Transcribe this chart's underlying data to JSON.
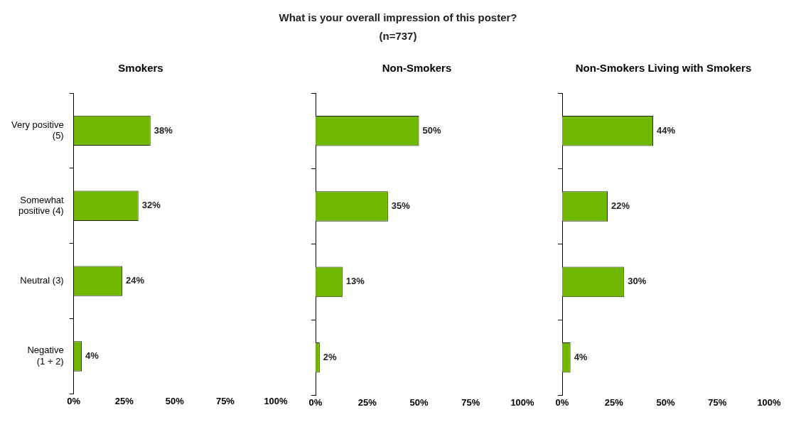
{
  "chart_data": [
    {
      "type": "other",
      "title": "What is your overall impression of this poster?",
      "subtitle": "(n=737)"
    },
    {
      "type": "bar",
      "orientation": "horizontal",
      "title": "Smokers",
      "categories": [
        "Very positive\n(5)",
        "Somewhat\npositive (4)",
        "Neutral (3)",
        "Negative\n(1 + 2)"
      ],
      "values": [
        38,
        32,
        24,
        4
      ],
      "value_labels": [
        "38%",
        "32%",
        "24%",
        "4%"
      ],
      "color": "#70b800",
      "xlim": [
        0,
        100
      ],
      "xticks": [
        {
          "value": 0,
          "label": "0%"
        },
        {
          "value": 25,
          "label": "25%"
        },
        {
          "value": 50,
          "label": "50%"
        },
        {
          "value": 75,
          "label": "75%"
        },
        {
          "value": 100,
          "label": "100%"
        }
      ],
      "grid": false,
      "legend": false
    },
    {
      "type": "bar",
      "orientation": "horizontal",
      "title": "Non-Smokers",
      "categories": [
        null,
        null,
        null,
        null
      ],
      "values": [
        50,
        35,
        13,
        2
      ],
      "value_labels": [
        "50%",
        "35%",
        "13%",
        "2%"
      ],
      "color": "#70b800",
      "xlim": [
        0,
        100
      ],
      "xticks": [
        {
          "value": 0,
          "label": "0%"
        },
        {
          "value": 25,
          "label": "25%"
        },
        {
          "value": 50,
          "label": "50%"
        },
        {
          "value": 75,
          "label": "75%"
        },
        {
          "value": 100,
          "label": "100%"
        }
      ],
      "grid": false,
      "legend": false,
      "tick_labels": "x"
    },
    {
      "type": "bar",
      "orientation": "horizontal",
      "title": "Non-Smokers Living with Smokers",
      "categories": [
        null,
        null,
        null,
        null
      ],
      "values": [
        44,
        22,
        30,
        4
      ],
      "value_labels": [
        "44%",
        "22%",
        "30%",
        "4%"
      ],
      "color": "#70b800",
      "xlim": [
        0,
        100
      ],
      "xticks": [
        {
          "value": 0,
          "label": "0%"
        },
        {
          "value": 25,
          "label": "25%"
        },
        {
          "value": 50,
          "label": "50%"
        },
        {
          "value": 75,
          "label": "75%"
        },
        {
          "value": 100,
          "label": "100%"
        }
      ],
      "grid": false,
      "legend": false,
      "tick_labels": "x"
    }
  ]
}
